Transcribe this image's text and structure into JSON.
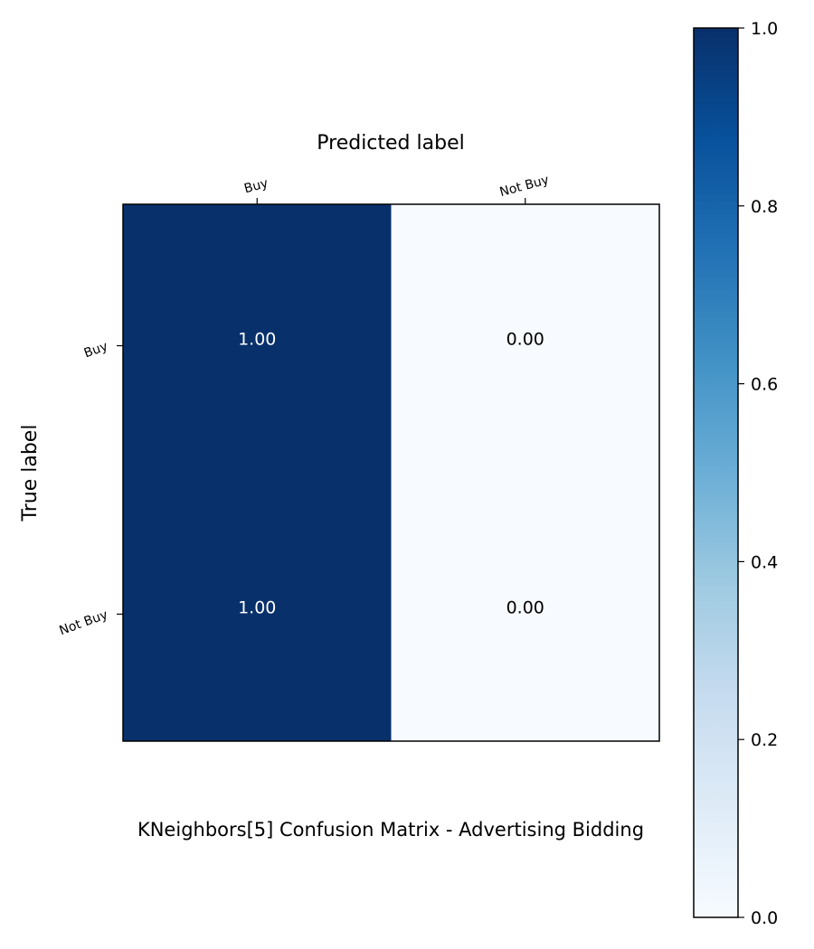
{
  "chart_data": {
    "type": "heatmap",
    "title": "KNeighbors[5]  Confusion Matrix - Advertising Bidding",
    "xlabel": "Predicted label",
    "ylabel": "True label",
    "x_categories": [
      "Buy",
      "Not Buy"
    ],
    "y_categories": [
      "Buy",
      "Not Buy"
    ],
    "values": [
      [
        1.0,
        0.0
      ],
      [
        1.0,
        0.0
      ]
    ],
    "value_labels": [
      [
        "1.00",
        "0.00"
      ],
      [
        "1.00",
        "0.00"
      ]
    ],
    "colormap": "Blues",
    "colormap_low": "#f7fbff",
    "colormap_high": "#08306b",
    "text_color_dark_cell": "#ffffff",
    "text_color_light_cell": "#000000",
    "colorbar": {
      "range": [
        0.0,
        1.0
      ],
      "ticks": [
        0.0,
        0.2,
        0.4,
        0.6,
        0.8,
        1.0
      ],
      "tick_labels": [
        "0.0",
        "0.2",
        "0.4",
        "0.6",
        "0.8",
        "1.0"
      ]
    }
  }
}
